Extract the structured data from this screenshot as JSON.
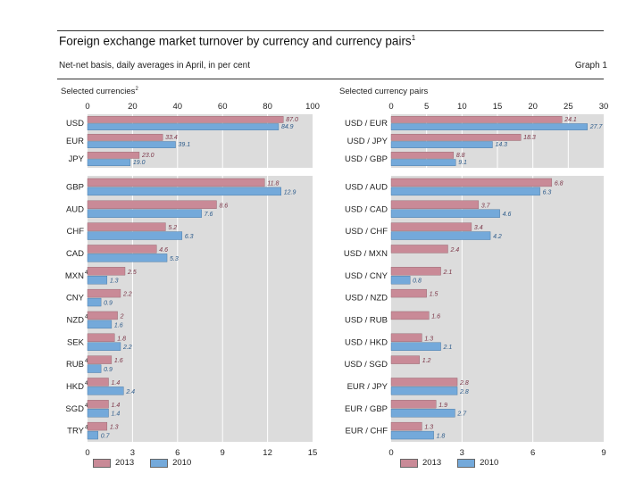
{
  "header": {
    "title": "Foreign exchange market turnover by currency and currency pairs",
    "title_note": "1",
    "subtitle": "Net-net basis, daily averages in April, in per cent",
    "graph_label": "Graph 1"
  },
  "colors": {
    "s2013": "#c98a97",
    "s2010": "#74a9da",
    "panel_bg": "#dcdcdc",
    "grid": "#ffffff"
  },
  "legend": {
    "s2013": "2013",
    "s2010": "2010"
  },
  "chart_data": [
    {
      "type": "bar",
      "orientation": "horizontal",
      "title": "Selected currencies",
      "title_note": "2",
      "axis": {
        "top_ticks": [
          "0",
          "20",
          "40",
          "60",
          "80",
          "100"
        ],
        "top_range": [
          0,
          100
        ]
      },
      "categories": [
        "USD",
        "EUR",
        "JPY"
      ],
      "series": [
        {
          "name": "2013",
          "values": [
            87.0,
            33.4,
            23.0
          ]
        },
        {
          "name": "2010",
          "values": [
            84.9,
            39.1,
            19.0
          ]
        }
      ],
      "labels_2013": [
        "87.0",
        "33.4",
        "23.0"
      ],
      "labels_2010": [
        "84.9",
        "39.1",
        "19.0"
      ]
    },
    {
      "type": "bar",
      "orientation": "horizontal",
      "axis": {
        "bottom_ticks": [
          "0",
          "3",
          "6",
          "9",
          "12",
          "15"
        ],
        "bottom_range": [
          0,
          15
        ]
      },
      "categories": [
        "GBP",
        "AUD",
        "CHF",
        "CAD",
        "MXN",
        "CNY",
        "NZD",
        "SEK",
        "RUB",
        "HKD",
        "SGD",
        "TRY"
      ],
      "category_notes": [
        "",
        "",
        "",
        "",
        "4",
        "",
        "4",
        "",
        "4",
        "4",
        "4",
        "4"
      ],
      "series": [
        {
          "name": "2013",
          "values": [
            11.8,
            8.6,
            5.2,
            4.6,
            2.5,
            2.2,
            2.0,
            1.8,
            1.6,
            1.4,
            1.4,
            1.3
          ]
        },
        {
          "name": "2010",
          "values": [
            12.9,
            7.6,
            6.3,
            5.3,
            1.3,
            0.9,
            1.6,
            2.2,
            0.9,
            2.4,
            1.4,
            0.7
          ]
        }
      ],
      "labels_2013": [
        "11.8",
        "8.6",
        "5.2",
        "4.6",
        "2.5",
        "2.2",
        "2",
        "1.8",
        "1.6",
        "1.4",
        "1.4",
        "1.3"
      ],
      "labels_2010": [
        "12.9",
        "7.6",
        "6.3",
        "5.3",
        "1.3",
        "0.9",
        "1.6",
        "2.2",
        "0.9",
        "2.4",
        "1.4",
        "0.7"
      ]
    },
    {
      "type": "bar",
      "orientation": "horizontal",
      "title": "Selected currency pairs",
      "axis": {
        "top_ticks": [
          "0",
          "5",
          "10",
          "15",
          "20",
          "25",
          "30"
        ],
        "top_range": [
          0,
          30
        ]
      },
      "categories": [
        "USD / EUR",
        "USD / JPY",
        "USD / GBP"
      ],
      "series": [
        {
          "name": "2013",
          "values": [
            24.1,
            18.3,
            8.8
          ]
        },
        {
          "name": "2010",
          "values": [
            27.7,
            14.3,
            9.1
          ]
        }
      ],
      "labels_2013": [
        "24.1",
        "18.3",
        "8.8"
      ],
      "labels_2010": [
        "27.7",
        "14.3",
        "9.1"
      ]
    },
    {
      "type": "bar",
      "orientation": "horizontal",
      "axis": {
        "bottom_ticks": [
          "0",
          "3",
          "6",
          "9"
        ],
        "bottom_range": [
          0,
          9
        ]
      },
      "categories": [
        "USD / AUD",
        "USD / CAD",
        "USD / CHF",
        "USD / MXN",
        "USD / CNY",
        "USD / NZD",
        "USD / RUB",
        "USD / HKD",
        "USD / SGD",
        "EUR / JPY",
        "EUR / GBP",
        "EUR / CHF"
      ],
      "series": [
        {
          "name": "2013",
          "values": [
            6.8,
            3.7,
            3.4,
            2.4,
            2.1,
            1.5,
            1.6,
            1.3,
            1.2,
            2.8,
            1.9,
            1.3
          ]
        },
        {
          "name": "2010",
          "values": [
            6.3,
            4.6,
            4.2,
            null,
            0.8,
            null,
            null,
            2.1,
            null,
            2.8,
            2.7,
            1.8
          ]
        }
      ],
      "labels_2013": [
        "6.8",
        "3.7",
        "3.4",
        "2.4",
        "2.1",
        "1.5",
        "1.6",
        "1.3",
        "1.2",
        "2.8",
        "1.9",
        "1.3"
      ],
      "labels_2010": [
        "6.3",
        "4.6",
        "4.2",
        "",
        "0.8",
        "",
        "",
        "2.1",
        "",
        "2.8",
        "2.7",
        "1.8"
      ]
    }
  ]
}
